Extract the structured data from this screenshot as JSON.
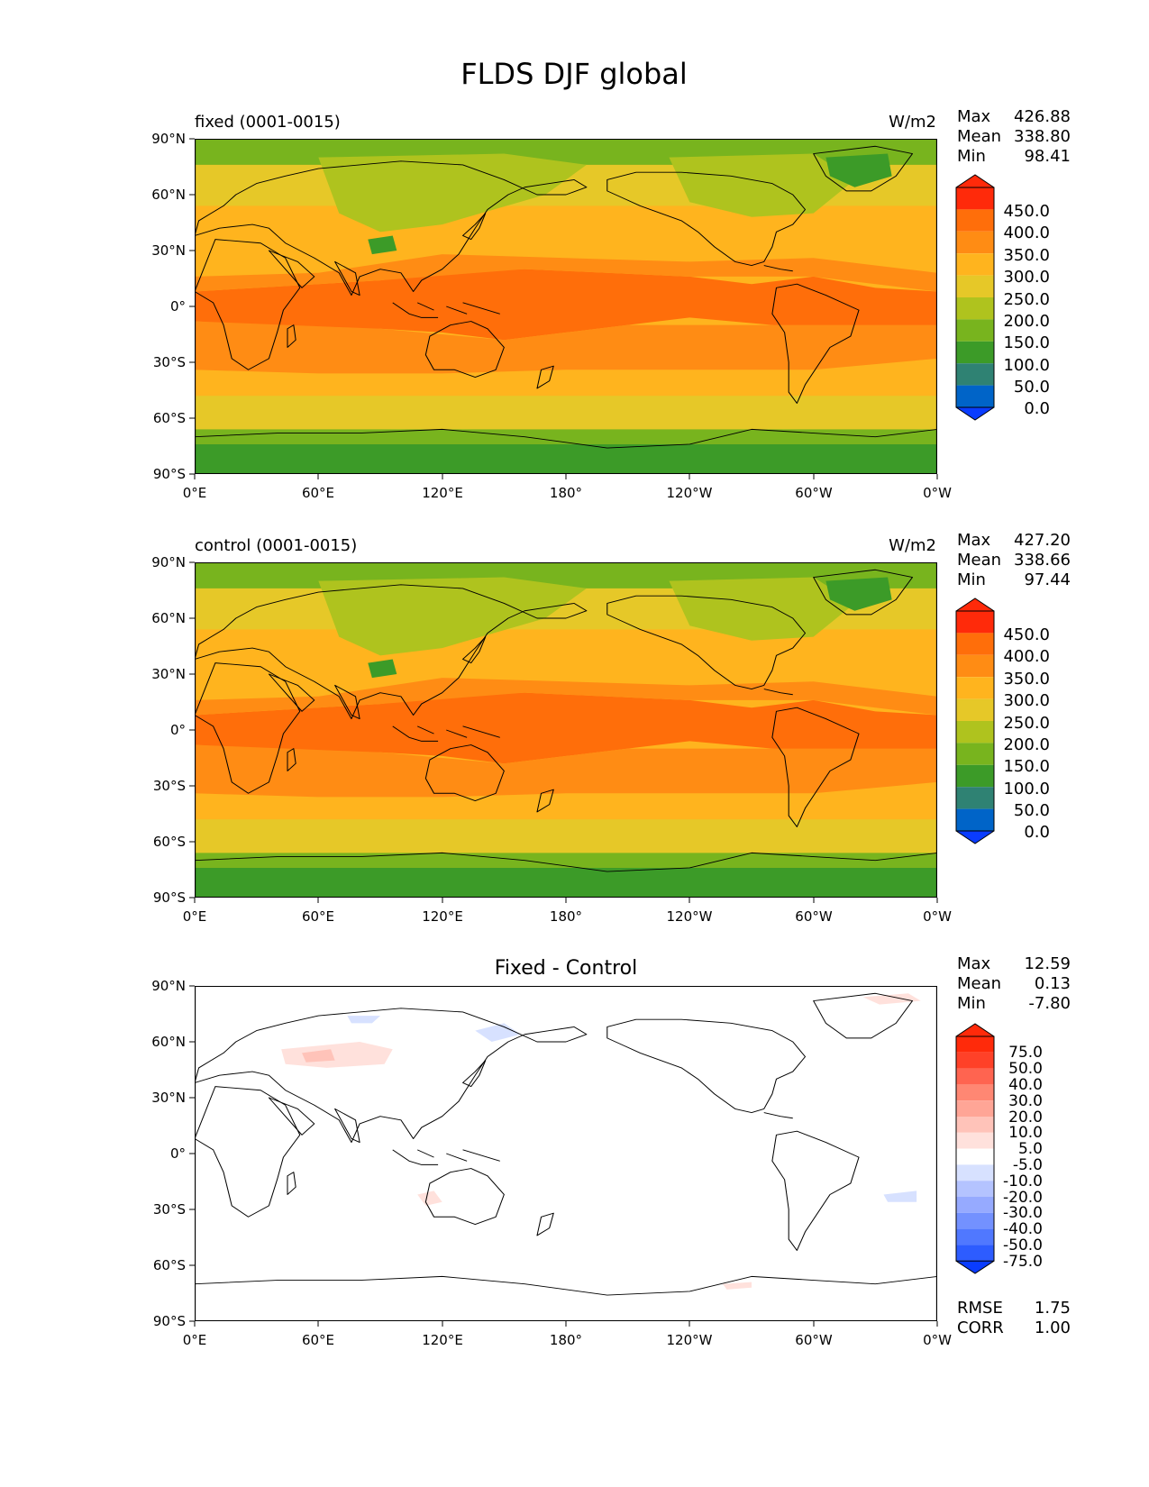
{
  "figure": {
    "title": "FLDS DJF global"
  },
  "axes": {
    "lat_ticks": [
      "90°N",
      "60°N",
      "30°N",
      "0°",
      "30°S",
      "60°S",
      "90°S"
    ],
    "lon_ticks": [
      "0°E",
      "60°E",
      "120°E",
      "180°",
      "120°W",
      "60°W",
      "0°W"
    ]
  },
  "colors": {
    "field_levels": [
      "#0a3cff",
      "#0064c8",
      "#2f8273",
      "#3c9b28",
      "#78b41e",
      "#afc31e",
      "#e6c828",
      "#ffb41e",
      "#ff8c14",
      "#ff6e0a",
      "#ff2a0a"
    ],
    "diff_levels": [
      "#0a3cff",
      "#2d5cff",
      "#5078ff",
      "#7391ff",
      "#96aaff",
      "#b4c3ff",
      "#d7e1ff",
      "#ffffff",
      "#ffe1dc",
      "#ffc3b9",
      "#ffa596",
      "#ff8773",
      "#ff6450",
      "#ff4128",
      "#ff2a0a"
    ]
  },
  "chart_data": [
    {
      "type": "heatmap",
      "panel": "top",
      "subtitle_left": "fixed (0001-0015)",
      "subtitle_right": "W/m2",
      "stats": [
        {
          "label": "Max",
          "value": "426.88"
        },
        {
          "label": "Mean",
          "value": "338.80"
        },
        {
          "label": "Min",
          "value": "98.41"
        }
      ],
      "colorbar_levels": [
        "450.0",
        "400.0",
        "350.0",
        "300.0",
        "250.0",
        "200.0",
        "150.0",
        "100.0",
        "50.0",
        "0.0"
      ],
      "xlim": [
        0,
        360
      ],
      "ylim": [
        -90,
        90
      ],
      "projection": "equirectangular"
    },
    {
      "type": "heatmap",
      "panel": "middle",
      "subtitle_left": "control (0001-0015)",
      "subtitle_right": "W/m2",
      "stats": [
        {
          "label": "Max",
          "value": "427.20"
        },
        {
          "label": "Mean",
          "value": "338.66"
        },
        {
          "label": "Min",
          "value": "97.44"
        }
      ],
      "colorbar_levels": [
        "450.0",
        "400.0",
        "350.0",
        "300.0",
        "250.0",
        "200.0",
        "150.0",
        "100.0",
        "50.0",
        "0.0"
      ],
      "xlim": [
        0,
        360
      ],
      "ylim": [
        -90,
        90
      ],
      "projection": "equirectangular"
    },
    {
      "type": "heatmap",
      "panel": "bottom",
      "title": "Fixed - Control",
      "stats": [
        {
          "label": "Max",
          "value": "12.59"
        },
        {
          "label": "Mean",
          "value": "0.13"
        },
        {
          "label": "Min",
          "value": "-7.80"
        }
      ],
      "colorbar_levels": [
        "75.0",
        "50.0",
        "40.0",
        "30.0",
        "20.0",
        "10.0",
        "5.0",
        "-5.0",
        "-10.0",
        "-20.0",
        "-30.0",
        "-40.0",
        "-50.0",
        "-75.0"
      ],
      "extra_stats": [
        {
          "label": "RMSE",
          "value": "1.75"
        },
        {
          "label": "CORR",
          "value": "1.00"
        }
      ],
      "xlim": [
        0,
        360
      ],
      "ylim": [
        -90,
        90
      ],
      "projection": "equirectangular"
    }
  ]
}
